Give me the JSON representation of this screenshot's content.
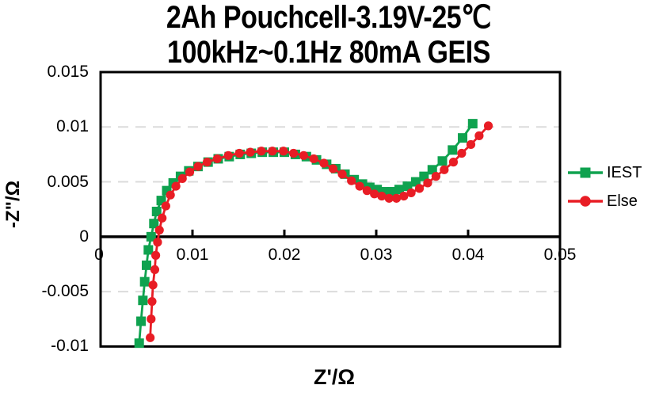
{
  "title": {
    "line1": "2Ah Pouchcell-3.19V-25℃",
    "line2": "100kHz~0.1Hz 80mA GEIS"
  },
  "axes": {
    "x": {
      "label": "Z'/Ω",
      "ticks": [
        0,
        0.01,
        0.02,
        0.03,
        0.04,
        0.05
      ],
      "tick_labels": [
        "0",
        "0.01",
        "0.02",
        "0.03",
        "0.04",
        "0.05"
      ]
    },
    "y": {
      "label": "-Z\"/Ω",
      "ticks": [
        0.015,
        0.01,
        0.005,
        0,
        -0.005,
        -0.01
      ],
      "tick_labels": [
        "0.015",
        "0.01",
        "0.005",
        "0",
        "-0.005",
        "-0.01"
      ]
    }
  },
  "colors": {
    "grid": "#DBDBDB",
    "axis": "#000000",
    "text": "#000000"
  },
  "chart_data": {
    "type": "scatter",
    "subtype": "nyquist-impedance-line-markers",
    "title": [
      "2Ah Pouchcell-3.19V-25℃",
      "100kHz~0.1Hz 80mA GEIS"
    ],
    "xlabel": "Z'/Ω",
    "ylabel": "-Z\"/Ω",
    "xlim": [
      0,
      0.05
    ],
    "ylim": [
      -0.01,
      0.015
    ],
    "grid": "horizontal-dashed",
    "legend_position": "right-outside",
    "series": [
      {
        "name": "IEST",
        "color": "#0FA24F",
        "marker": "square",
        "points": [
          [
            0.0042,
            -0.0097
          ],
          [
            0.0044,
            -0.0077
          ],
          [
            0.0046,
            -0.0058
          ],
          [
            0.0048,
            -0.0041
          ],
          [
            0.005,
            -0.0026
          ],
          [
            0.0052,
            -0.0012
          ],
          [
            0.0055,
            0.0
          ],
          [
            0.0058,
            0.0012
          ],
          [
            0.0061,
            0.0023
          ],
          [
            0.0066,
            0.0033
          ],
          [
            0.0072,
            0.0042
          ],
          [
            0.0079,
            0.0049
          ],
          [
            0.0087,
            0.0055
          ],
          [
            0.0096,
            0.006
          ],
          [
            0.0106,
            0.0064
          ],
          [
            0.0117,
            0.0068
          ],
          [
            0.0128,
            0.0071
          ],
          [
            0.014,
            0.0073
          ],
          [
            0.0152,
            0.0075
          ],
          [
            0.0164,
            0.0076
          ],
          [
            0.0176,
            0.0077
          ],
          [
            0.0188,
            0.0077
          ],
          [
            0.02,
            0.0077
          ],
          [
            0.0212,
            0.0075
          ],
          [
            0.0224,
            0.0073
          ],
          [
            0.0235,
            0.007
          ],
          [
            0.0246,
            0.0066
          ],
          [
            0.0256,
            0.0062
          ],
          [
            0.0266,
            0.0057
          ],
          [
            0.0276,
            0.0052
          ],
          [
            0.0285,
            0.0048
          ],
          [
            0.0293,
            0.0045
          ],
          [
            0.0301,
            0.0043
          ],
          [
            0.0309,
            0.0041
          ],
          [
            0.0317,
            0.0041
          ],
          [
            0.0325,
            0.0043
          ],
          [
            0.0334,
            0.0046
          ],
          [
            0.0343,
            0.005
          ],
          [
            0.0352,
            0.0055
          ],
          [
            0.0361,
            0.0061
          ],
          [
            0.0372,
            0.0069
          ],
          [
            0.0383,
            0.0079
          ],
          [
            0.0394,
            0.009
          ],
          [
            0.0405,
            0.0103
          ]
        ]
      },
      {
        "name": "Else",
        "color": "#E81D25",
        "marker": "circle",
        "points": [
          [
            0.0054,
            -0.0092
          ],
          [
            0.0055,
            -0.0075
          ],
          [
            0.0056,
            -0.0059
          ],
          [
            0.0057,
            -0.0044
          ],
          [
            0.0059,
            -0.003
          ],
          [
            0.006,
            -0.0017
          ],
          [
            0.0062,
            -0.0005
          ],
          [
            0.0064,
            0.0006
          ],
          [
            0.0067,
            0.0017
          ],
          [
            0.0071,
            0.0028
          ],
          [
            0.0076,
            0.0038
          ],
          [
            0.0082,
            0.0046
          ],
          [
            0.0089,
            0.0053
          ],
          [
            0.0097,
            0.0059
          ],
          [
            0.0106,
            0.0064
          ],
          [
            0.0116,
            0.0068
          ],
          [
            0.0127,
            0.0071
          ],
          [
            0.0139,
            0.0074
          ],
          [
            0.0151,
            0.0076
          ],
          [
            0.0163,
            0.0077
          ],
          [
            0.0175,
            0.0078
          ],
          [
            0.0187,
            0.0078
          ],
          [
            0.0199,
            0.0078
          ],
          [
            0.021,
            0.0076
          ],
          [
            0.0221,
            0.0074
          ],
          [
            0.0232,
            0.0071
          ],
          [
            0.0243,
            0.0067
          ],
          [
            0.0253,
            0.0062
          ],
          [
            0.0263,
            0.0057
          ],
          [
            0.0273,
            0.0051
          ],
          [
            0.0282,
            0.0046
          ],
          [
            0.029,
            0.0042
          ],
          [
            0.0298,
            0.0039
          ],
          [
            0.0306,
            0.0037
          ],
          [
            0.0314,
            0.0035
          ],
          [
            0.0322,
            0.0035
          ],
          [
            0.033,
            0.0037
          ],
          [
            0.0338,
            0.004
          ],
          [
            0.0347,
            0.0044
          ],
          [
            0.0356,
            0.0049
          ],
          [
            0.0365,
            0.0055
          ],
          [
            0.0374,
            0.0061
          ],
          [
            0.0384,
            0.0068
          ],
          [
            0.0393,
            0.0076
          ],
          [
            0.0403,
            0.0084
          ],
          [
            0.0412,
            0.0092
          ],
          [
            0.0422,
            0.0101
          ]
        ]
      }
    ]
  }
}
